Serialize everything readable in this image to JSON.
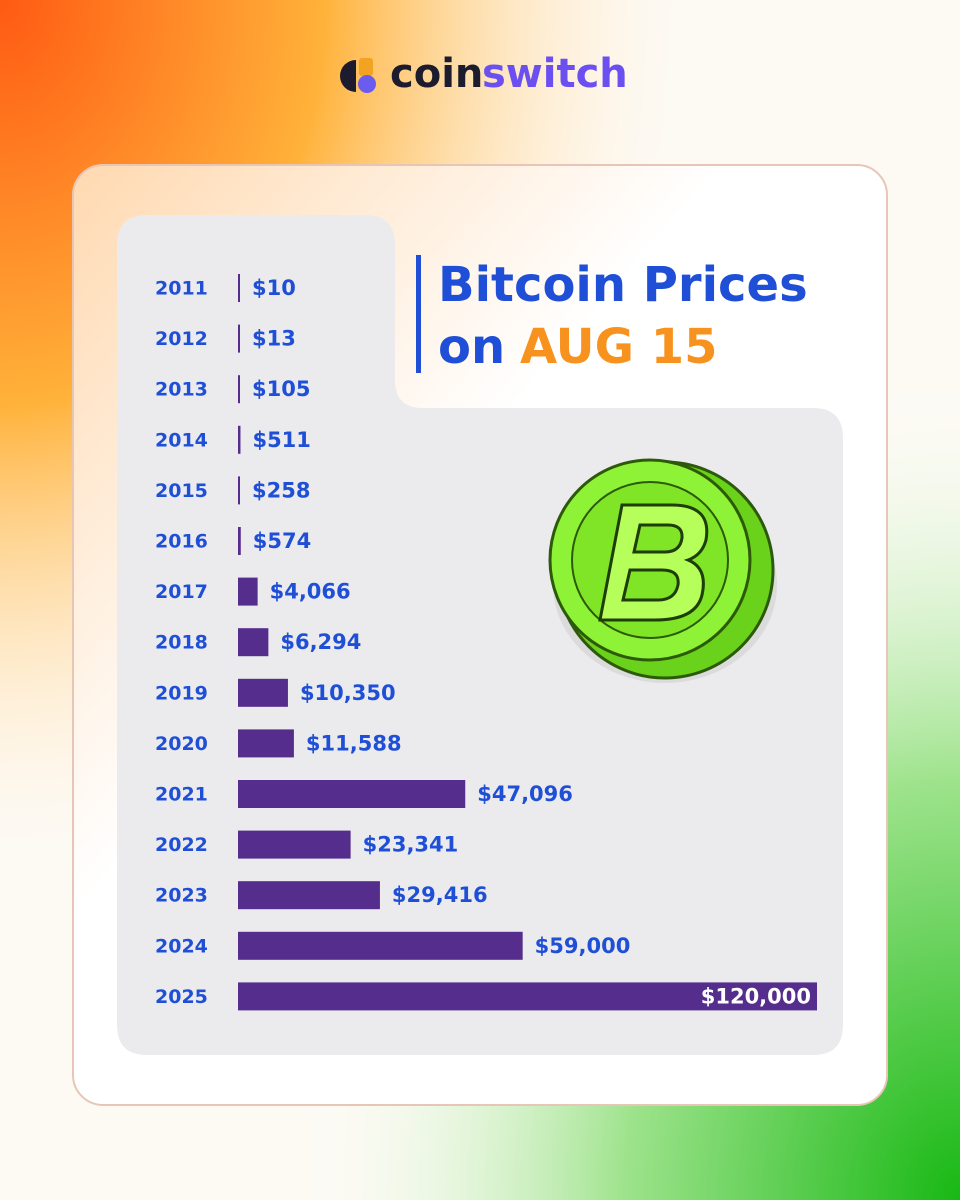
{
  "brand": [
    "coin",
    "switch"
  ],
  "chart_data": {
    "type": "bar",
    "orientation": "horizontal",
    "title": [
      "Bitcoin Prices",
      "on",
      "AUG 15"
    ],
    "categories": [
      "2011",
      "2012",
      "2013",
      "2014",
      "2015",
      "2016",
      "2017",
      "2018",
      "2019",
      "2020",
      "2021",
      "2022",
      "2023",
      "2024",
      "2025"
    ],
    "values": [
      10,
      13,
      105,
      511,
      258,
      574,
      4066,
      6294,
      10350,
      11588,
      47096,
      23341,
      29416,
      59000,
      120000
    ],
    "value_labels": [
      "$10",
      "$13",
      "$105",
      "$511",
      "$258",
      "$574",
      "$4,066",
      "$6,294",
      "$10,350",
      "$11,588",
      "$47,096",
      "$23,341",
      "$29,416",
      "$59,000",
      "$120,000"
    ],
    "color": "#552d8c"
  }
}
